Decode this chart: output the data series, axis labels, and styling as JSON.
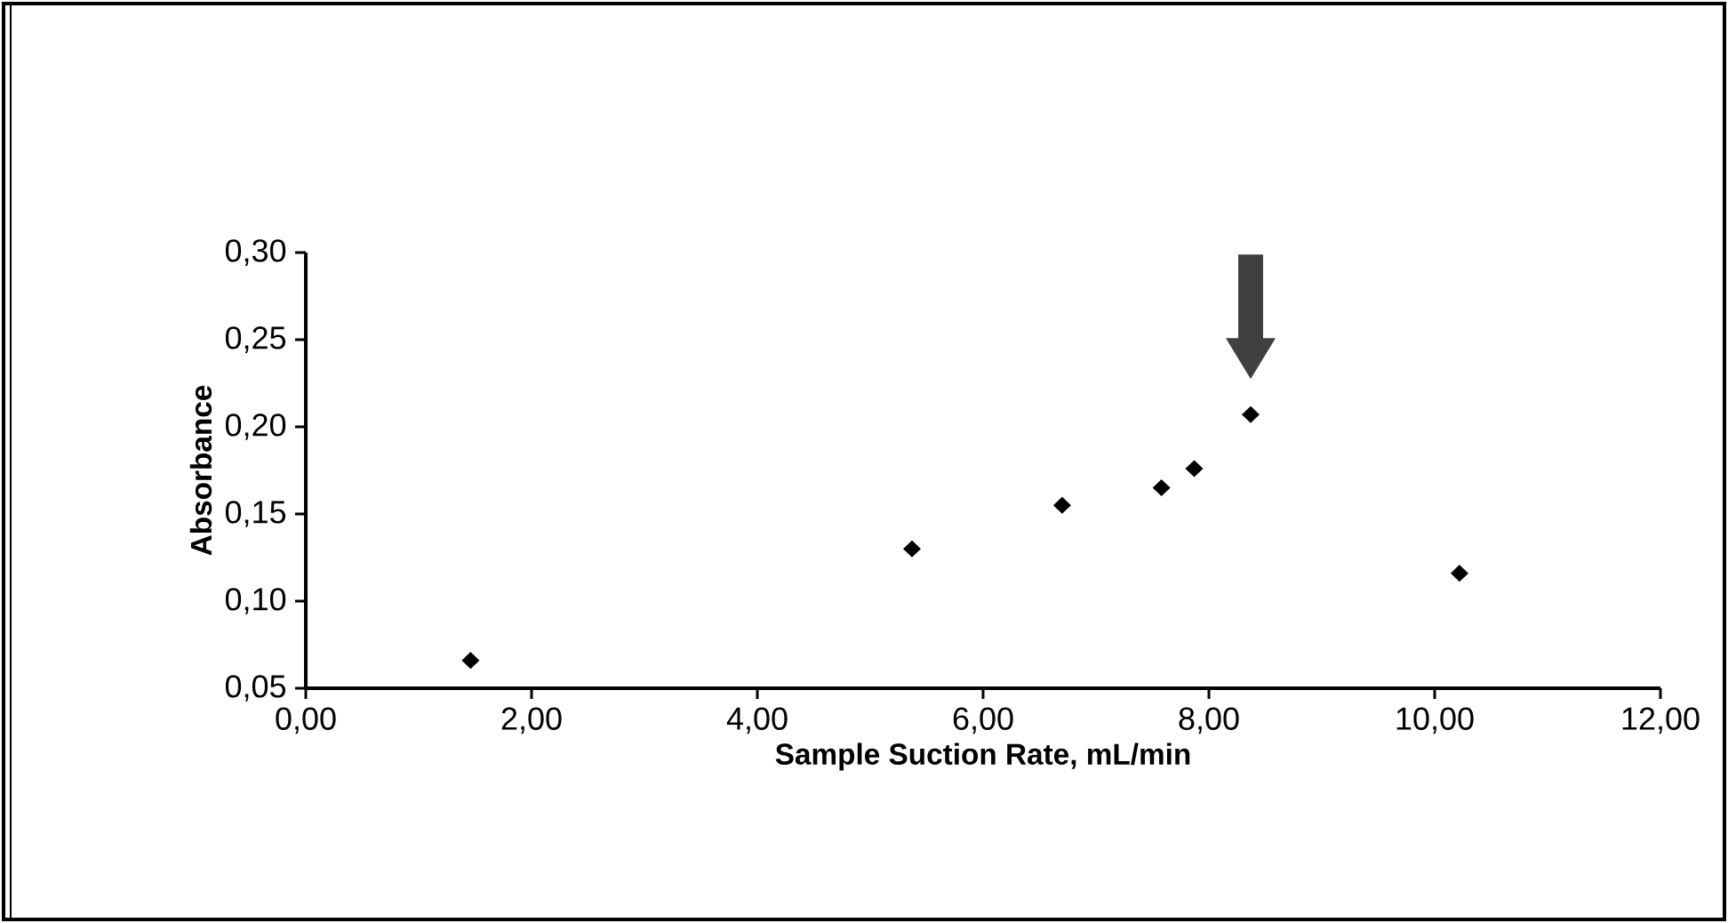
{
  "chart_data": {
    "type": "scatter",
    "xlabel": "Sample Suction Rate, mL/min",
    "ylabel": "Absorbance",
    "x": [
      1.46,
      5.37,
      6.7,
      7.58,
      7.87,
      8.37,
      10.22
    ],
    "series": [
      {
        "color": "#000000",
        "values": [
          0.066,
          0.13,
          0.155,
          0.165,
          0.176,
          0.207,
          0.116
        ]
      }
    ],
    "xlim": [
      0,
      12
    ],
    "ylim": [
      0.05,
      0.3
    ],
    "xticks": [
      {
        "value": 0,
        "label": "0,00"
      },
      {
        "value": 2,
        "label": "2,00"
      },
      {
        "value": 4,
        "label": "4,00"
      },
      {
        "value": 6,
        "label": "6,00"
      },
      {
        "value": 8,
        "label": "8,00"
      },
      {
        "value": 10,
        "label": "10,00"
      },
      {
        "value": 12,
        "label": "12,00"
      }
    ],
    "yticks": [
      {
        "value": 0.05,
        "label": "0,05"
      },
      {
        "value": 0.1,
        "label": "0,10"
      },
      {
        "value": 0.15,
        "label": "0,15"
      },
      {
        "value": 0.2,
        "label": "0,20"
      },
      {
        "value": 0.25,
        "label": "0,25"
      },
      {
        "value": 0.3,
        "label": "0,30"
      }
    ],
    "marker": "diamond",
    "grid": false
  }
}
